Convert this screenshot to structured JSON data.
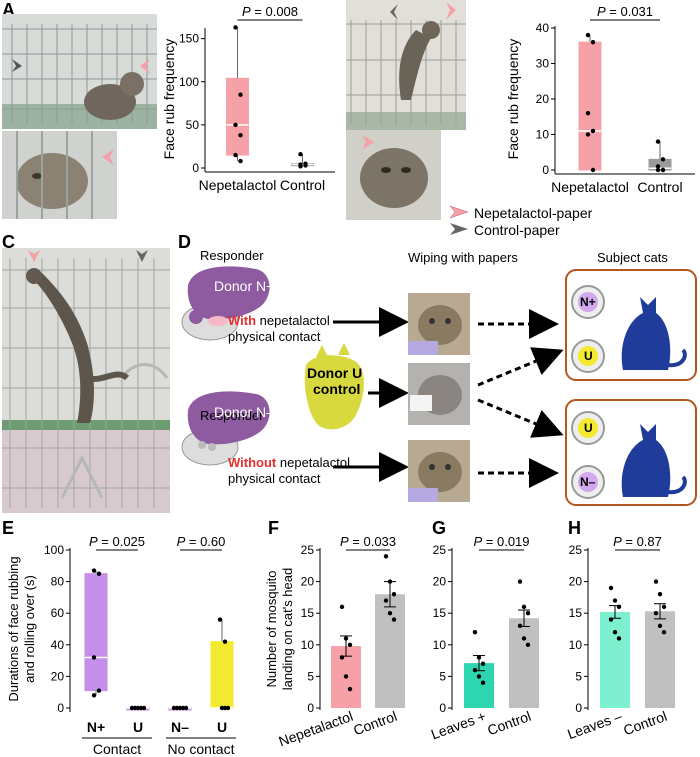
{
  "panels": {
    "A": {
      "letter": "A",
      "chart": {
        "type": "box",
        "categories": [
          "Nepetalactol",
          "Control"
        ],
        "ylabel": "Face rub frequency",
        "ylim": [
          0,
          160
        ],
        "yticks": [
          0,
          50,
          100,
          150
        ],
        "p_label": "P = 0.008",
        "series": [
          {
            "name": "Nepetalactol",
            "color": "#f6a0a8",
            "q1": 15,
            "median": 50,
            "q3": 104,
            "whisker_low": 8,
            "whisker_high": 163,
            "points": [
              163,
              85,
              50,
              38,
              15,
              8
            ]
          },
          {
            "name": "Control",
            "color": "#9a9a9a",
            "q1": 3,
            "median": 4,
            "q3": 5,
            "whisker_low": 2,
            "whisker_high": 16,
            "points": [
              16,
              5,
              4,
              3,
              2
            ]
          }
        ]
      }
    },
    "B": {
      "letter": "B",
      "chart": {
        "type": "box",
        "categories": [
          "Nepetalactol",
          "Control"
        ],
        "ylabel": "Face rub frequency",
        "ylim": [
          0,
          40
        ],
        "yticks": [
          0,
          10,
          20,
          30,
          40
        ],
        "p_label": "P = 0.031",
        "series": [
          {
            "name": "Nepetalactol",
            "color": "#f6a0a8",
            "q1": 0,
            "median": 11,
            "q3": 36,
            "whisker_low": 0,
            "whisker_high": 38,
            "points": [
              38,
              36,
              16,
              11,
              10,
              0
            ]
          },
          {
            "name": "Control",
            "color": "#9a9a9a",
            "q1": 0,
            "median": 0.5,
            "q3": 3,
            "whisker_low": 0,
            "whisker_high": 8,
            "points": [
              8,
              3,
              1,
              0,
              0,
              0
            ]
          }
        ]
      },
      "legend": [
        {
          "label": "Nepetalactol-paper",
          "color": "#f6a0a8"
        },
        {
          "label": "Control-paper",
          "color": "#666666"
        }
      ]
    },
    "C": {
      "letter": "C"
    },
    "D": {
      "letter": "D",
      "responder_top": "Responder",
      "donor_nplus": "Donor N+",
      "with_word": "With",
      "with_rest": "nepetalactol",
      "physical_contact_1": "physical contact",
      "donor_u_line1": "Donor U",
      "donor_u_line2": "control",
      "responder_bottom": "Responder",
      "donor_nminus": "Donor N–",
      "without_word": "Without",
      "without_rest": "nepetalactol",
      "physical_contact_2": "physical contact",
      "wiping_header": "Wiping with papers",
      "subject_header": "Subject cats",
      "badge_nplus": "N+",
      "badge_u1": "U",
      "badge_u2": "U",
      "badge_nminus": "N–",
      "colors": {
        "purple": "#8e5aa0",
        "yellow": "#d8d93e",
        "blue": "#1f3c9a",
        "red": "#e03030",
        "orange": "#b4561f"
      }
    },
    "E": {
      "letter": "E",
      "chart": {
        "type": "box",
        "categories": [
          "N+",
          "U",
          "N–",
          "U"
        ],
        "groups": [
          "Contact",
          "No contact"
        ],
        "ylabel_line1": "Durations of face rubbing",
        "ylabel_line2": "and rolling over (s)",
        "ylim": [
          0,
          100
        ],
        "yticks": [
          0,
          20,
          40,
          60,
          80,
          100
        ],
        "p_labels": [
          "P = 0.025",
          "P = 0.60"
        ],
        "series": [
          {
            "name": "N+",
            "color": "#c58ee8",
            "q1": 11,
            "median": 32,
            "q3": 85,
            "whisker_low": 8,
            "whisker_high": 87,
            "points": [
              87,
              85,
              32,
              11,
              8
            ]
          },
          {
            "name": "U",
            "color": "#c58ee8",
            "q1": 0,
            "median": 0,
            "q3": 0,
            "whisker_low": 0,
            "whisker_high": 0,
            "points": [
              0,
              0,
              0,
              0,
              0
            ]
          },
          {
            "name": "N–",
            "color": "#c58ee8",
            "q1": 0,
            "median": 0,
            "q3": 0,
            "whisker_low": 0,
            "whisker_high": 0,
            "points": [
              0,
              0,
              0,
              0,
              0
            ]
          },
          {
            "name": "U",
            "color": "#f4ea30",
            "q1": 0,
            "median": 0,
            "q3": 42,
            "whisker_low": 0,
            "whisker_high": 56,
            "points": [
              56,
              42,
              0,
              0,
              0
            ]
          }
        ]
      }
    },
    "F": {
      "letter": "F",
      "chart": {
        "type": "bar",
        "categories": [
          "Nepetalactol",
          "Control"
        ],
        "ylabel_line1": "Number of mosquito",
        "ylabel_line2": "landing on cat's head",
        "ylim": [
          0,
          25
        ],
        "yticks": [
          0,
          5,
          10,
          15,
          20,
          25
        ],
        "p_label": "P = 0.033",
        "values": [
          9.8,
          18.0
        ],
        "errors": [
          1.6,
          2.0
        ],
        "colors": [
          "#f6a0a8",
          "#c0c0c0"
        ],
        "points": [
          [
            16,
            11,
            10,
            8,
            5,
            3
          ],
          [
            24,
            20,
            18,
            17,
            15,
            14
          ]
        ]
      }
    },
    "G": {
      "letter": "G",
      "chart": {
        "type": "bar",
        "categories": [
          "Leaves +",
          "Control"
        ],
        "ylim": [
          0,
          25
        ],
        "yticks": [
          0,
          5,
          10,
          15,
          20,
          25
        ],
        "p_label": "P = 0.019",
        "values": [
          7.1,
          14.2
        ],
        "errors": [
          1.2,
          1.3
        ],
        "colors": [
          "#2ed6b0",
          "#c0c0c0"
        ],
        "points": [
          [
            12,
            8,
            7,
            6,
            5,
            4
          ],
          [
            20,
            16,
            15,
            13,
            11,
            10
          ]
        ]
      }
    },
    "H": {
      "letter": "H",
      "chart": {
        "type": "bar",
        "categories": [
          "Leaves –",
          "Control"
        ],
        "ylim": [
          0,
          25
        ],
        "yticks": [
          0,
          5,
          10,
          15,
          20,
          25
        ],
        "p_label": "P = 0.87",
        "values": [
          15.2,
          15.3
        ],
        "errors": [
          1.0,
          1.2
        ],
        "colors": [
          "#7ef0d0",
          "#c0c0c0"
        ],
        "points": [
          [
            19,
            17,
            16,
            14,
            12,
            11
          ],
          [
            20,
            18,
            16,
            15,
            13,
            12
          ]
        ]
      }
    }
  }
}
